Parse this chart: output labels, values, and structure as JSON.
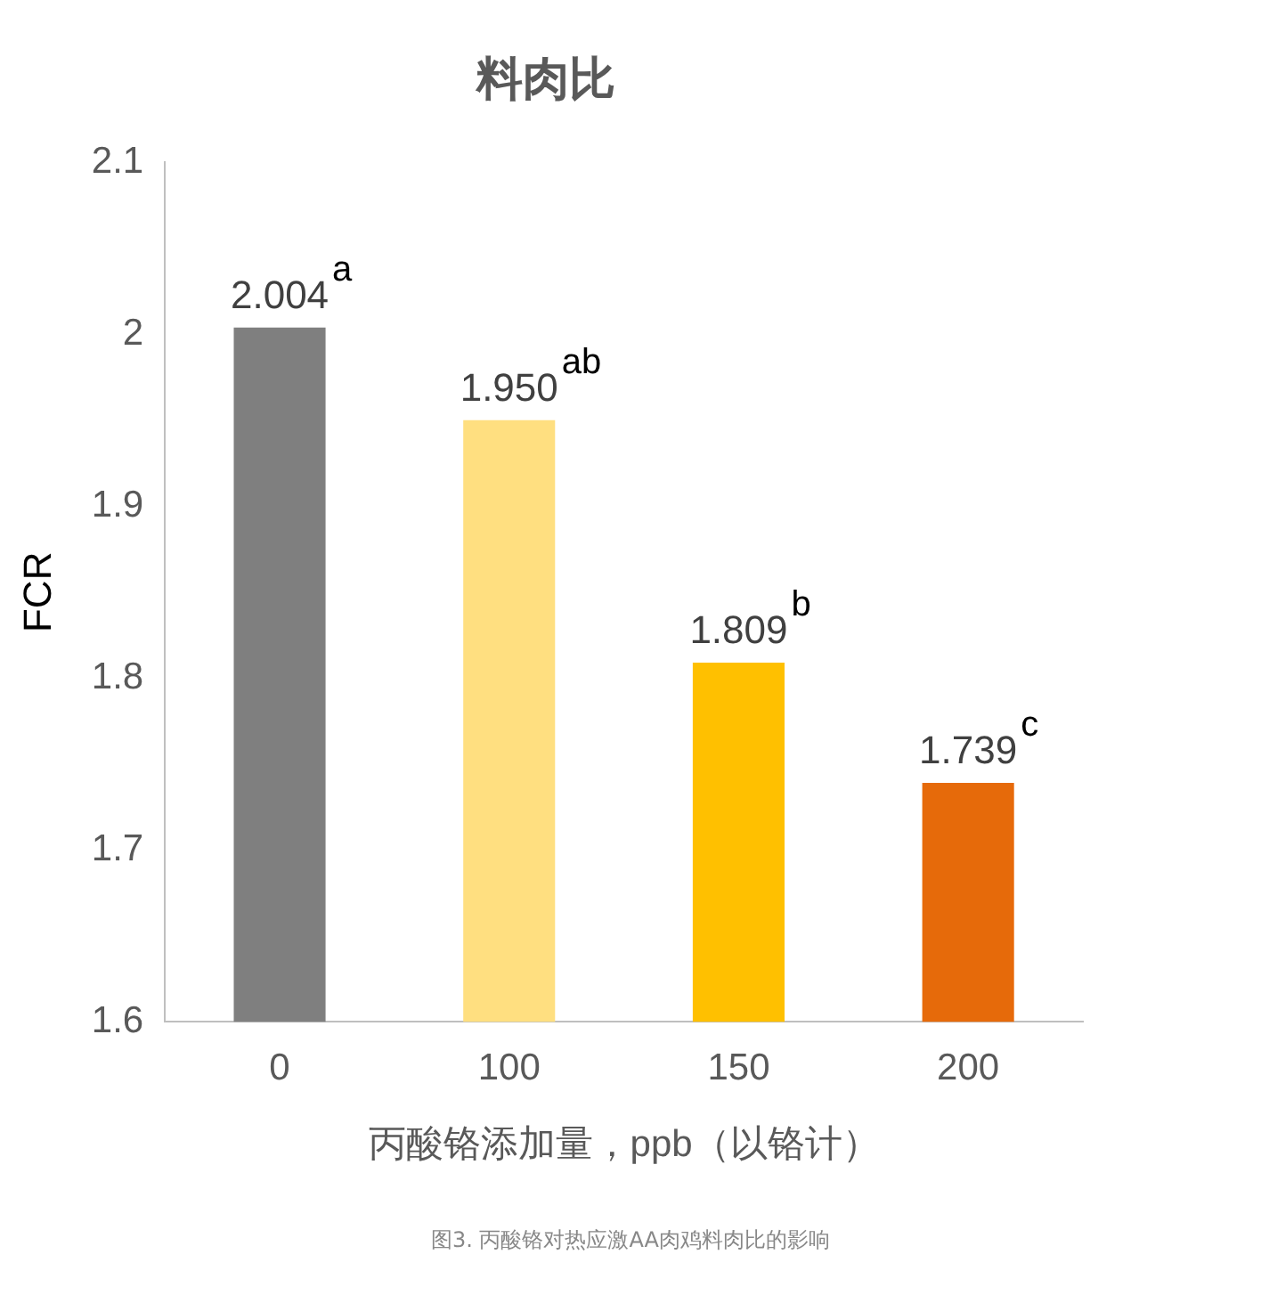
{
  "chart_data": {
    "type": "bar",
    "title": "料肉比",
    "xlabel": "丙酸铬添加量，ppb（以铬计）",
    "ylabel": "FCR",
    "categories": [
      "0",
      "100",
      "150",
      "200"
    ],
    "values": [
      2.004,
      1.95,
      1.809,
      1.739
    ],
    "value_labels": [
      "2.004",
      "1.950",
      "1.809",
      "1.739"
    ],
    "colors": [
      "#7f7f7f",
      "#ffdf80",
      "#ffc000",
      "#e66a0a"
    ],
    "ylim": [
      1.6,
      2.1
    ],
    "yticks": [
      {
        "value": 1.6,
        "label": "1.6"
      },
      {
        "value": 1.7,
        "label": "1.7"
      },
      {
        "value": 1.8,
        "label": "1.8"
      },
      {
        "value": 1.9,
        "label": "1.9"
      },
      {
        "value": 2,
        "label": "2"
      },
      {
        "value": 2.1,
        "label": "2.1"
      }
    ],
    "grid": false,
    "legend": false,
    "annotations": [
      {
        "text": "a",
        "x": "0",
        "y": 2.004
      },
      {
        "text": "ab",
        "x": "100",
        "y": 1.95
      },
      {
        "text": "b",
        "x": "150",
        "y": 1.809
      },
      {
        "text": "c",
        "x": "200",
        "y": 1.739
      },
      "图3. 丙酸铬对热应激AA肉鸡料肉比的影响"
    ]
  }
}
